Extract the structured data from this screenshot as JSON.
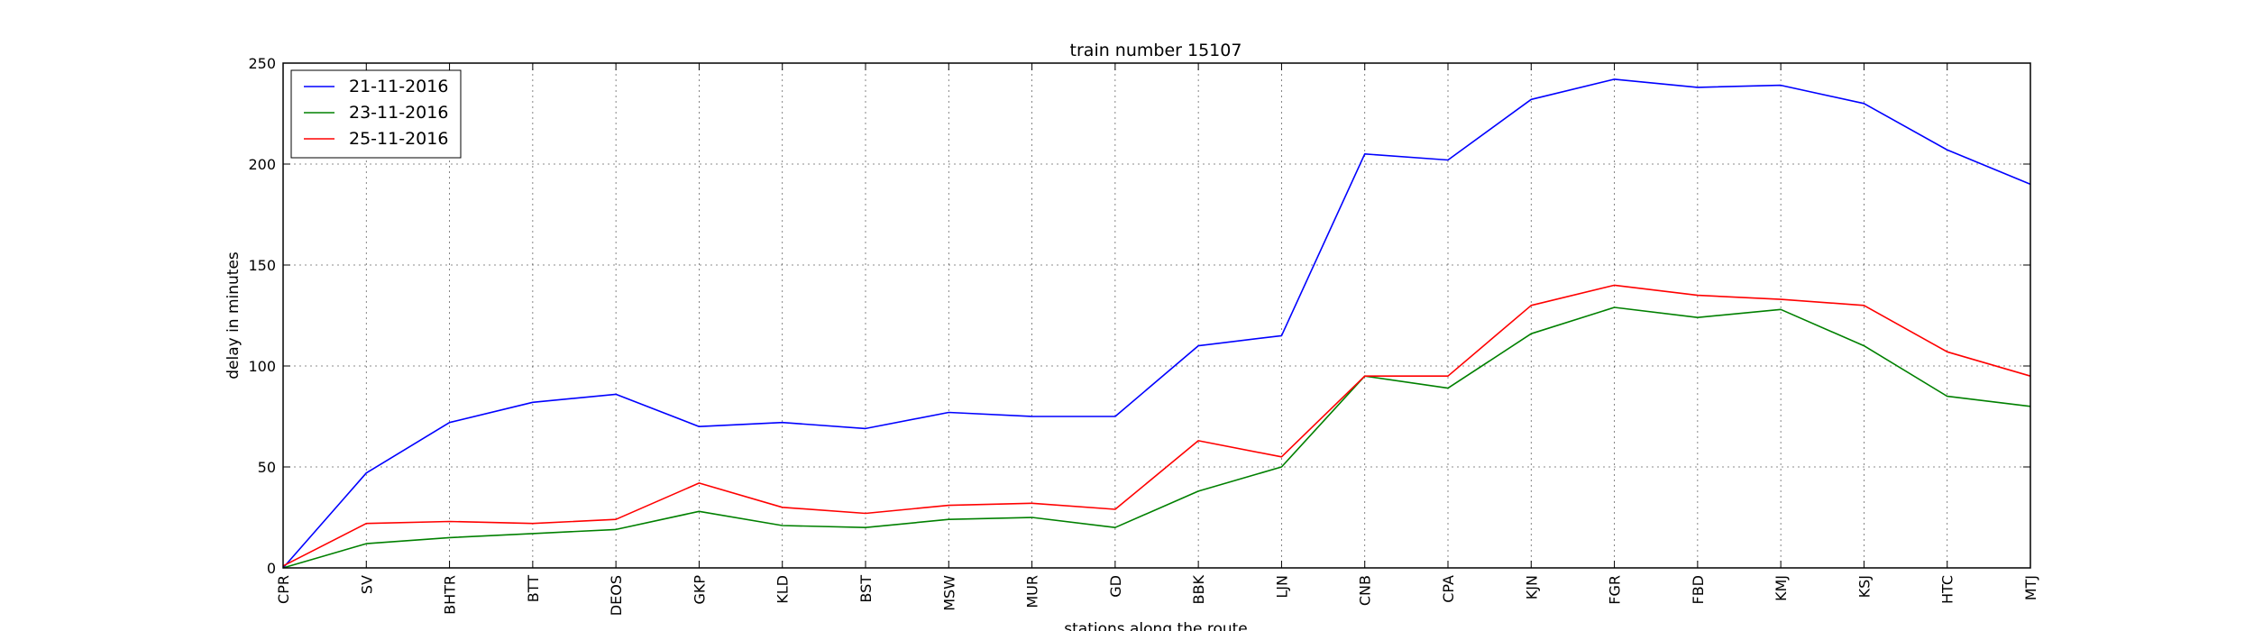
{
  "chart_data": {
    "type": "line",
    "title": "train number 15107",
    "xlabel": "stations along the route",
    "ylabel": "delay in minutes",
    "ylim": [
      0,
      250
    ],
    "yticks": [
      0,
      50,
      100,
      150,
      200,
      250
    ],
    "grid": true,
    "legend_position": "top-left",
    "categories": [
      "CPR",
      "SV",
      "BHTR",
      "BTT",
      "DEOS",
      "GKP",
      "KLD",
      "BST",
      "MSW",
      "MUR",
      "GD",
      "BBK",
      "LJN",
      "CNB",
      "CPA",
      "KJN",
      "FGR",
      "FBD",
      "KMJ",
      "KSJ",
      "HTC",
      "MTJ"
    ],
    "series": [
      {
        "name": "21-11-2016",
        "color": "#0000ff",
        "values": [
          0,
          47,
          72,
          82,
          86,
          70,
          72,
          69,
          77,
          75,
          75,
          110,
          115,
          205,
          202,
          232,
          242,
          238,
          239,
          230,
          207,
          190
        ]
      },
      {
        "name": "23-11-2016",
        "color": "#008000",
        "values": [
          0,
          12,
          15,
          17,
          19,
          28,
          21,
          20,
          24,
          25,
          20,
          38,
          50,
          95,
          89,
          116,
          129,
          124,
          128,
          110,
          85,
          80
        ]
      },
      {
        "name": "25-11-2016",
        "color": "#ff0000",
        "values": [
          1,
          22,
          23,
          22,
          24,
          42,
          30,
          27,
          31,
          32,
          29,
          63,
          55,
          95,
          95,
          130,
          140,
          135,
          133,
          130,
          107,
          95
        ]
      }
    ]
  }
}
